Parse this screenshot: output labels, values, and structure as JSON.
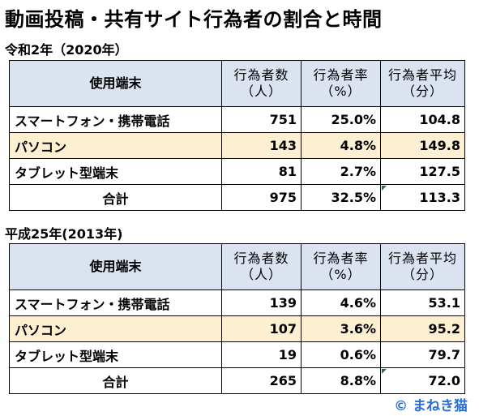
{
  "title": "動画投稿・共有サイト行為者の割合と時間",
  "headers": {
    "device": "使用端末",
    "count_l1": "行為者数",
    "count_l2": "（人）",
    "rate_l1": "行為者率",
    "rate_l2": "（%）",
    "avg_l1": "行為者平均",
    "avg_l2": "（分）"
  },
  "sections": [
    {
      "subtitle": "令和2年（2020年）",
      "rows": [
        {
          "device": "スマートフォン・携帯電話",
          "count": "751",
          "rate": "25.0%",
          "avg": "104.8"
        },
        {
          "device": "パソコン",
          "count": "143",
          "rate": "4.8%",
          "avg": "149.8"
        },
        {
          "device": "タブレット型端末",
          "count": "81",
          "rate": "2.7%",
          "avg": "127.5"
        },
        {
          "device": "合計",
          "count": "975",
          "rate": "32.5%",
          "avg": "113.3"
        }
      ]
    },
    {
      "subtitle": "平成25年(2013年)",
      "rows": [
        {
          "device": "スマートフォン・携帯電話",
          "count": "139",
          "rate": "4.6%",
          "avg": "53.1"
        },
        {
          "device": "パソコン",
          "count": "107",
          "rate": "3.6%",
          "avg": "95.2"
        },
        {
          "device": "タブレット型端末",
          "count": "19",
          "rate": "0.6%",
          "avg": "79.7"
        },
        {
          "device": "合計",
          "count": "265",
          "rate": "8.8%",
          "avg": "72.0"
        }
      ]
    }
  ],
  "colors": {
    "header_bg": "#dbe2f0",
    "highlight_row_bg": "#fcefd2",
    "copyright": "#2b6fd6"
  },
  "copyright": "© まねき猫"
}
